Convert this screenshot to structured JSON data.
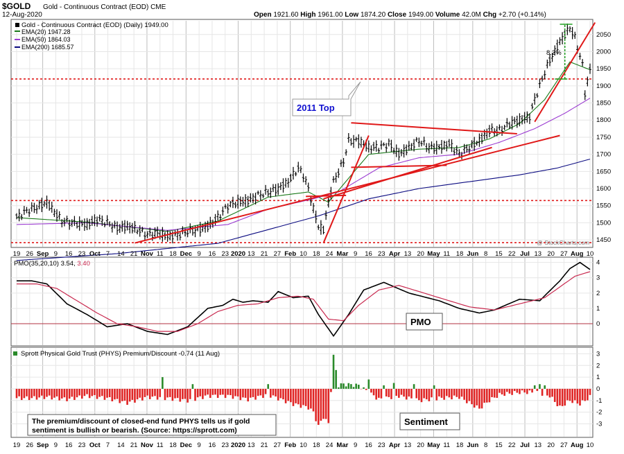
{
  "header": {
    "symbol": "$GOLD",
    "description": "Gold - Continuous Contract (EOD)",
    "exchange": "CME",
    "date": "12-Aug-2020",
    "open_label": "Open",
    "open": "1921.60",
    "high_label": "High",
    "high": "1961.00",
    "low_label": "Low",
    "low": "1874.20",
    "close_label": "Close",
    "close": "1949.00",
    "volume_label": "Volume",
    "volume": "42.0M",
    "chg_label": "Chg",
    "chg": "+2.70 (+0.14%)",
    "watermark": "@ StockCharts.com"
  },
  "colors": {
    "price": "#000000",
    "ema20": "#1a7a1a",
    "ema50": "#9b3bd1",
    "ema200": "#0a0a80",
    "annotation": "#e01818",
    "pmo_signal": "#c8284e",
    "histogram_positive": "#2a8a2a",
    "histogram_negative": "#e02424",
    "label_blue": "#1010d0",
    "measure_green": "#20a020"
  },
  "x_axis": {
    "top_labels": [
      "19",
      "26",
      "Sep",
      "9",
      "16",
      "23",
      "Oct",
      "7",
      "14",
      "21",
      "Nov",
      "11",
      "18",
      "Dec",
      "9",
      "16",
      "23",
      "2020",
      "13",
      "21",
      "27",
      "Feb",
      "10",
      "18",
      "24",
      "Mar",
      "9",
      "16",
      "23",
      "Apr",
      "13",
      "20",
      "May",
      "11",
      "18",
      "Jun",
      "8",
      "15",
      "22",
      "Jul",
      "13",
      "20",
      "27",
      "Aug",
      "10"
    ],
    "bottom_labels": [
      "19",
      "26",
      "Sep",
      "9",
      "16",
      "23",
      "Oct",
      "7",
      "14",
      "21",
      "Nov",
      "11",
      "18",
      "Dec",
      "9",
      "16",
      "23",
      "2020",
      "13",
      "21",
      "27",
      "Feb",
      "10",
      "18",
      "24",
      "Mar",
      "9",
      "16",
      "23",
      "Apr",
      "13",
      "20",
      "May",
      "11",
      "18",
      "Jun",
      "8",
      "15",
      "22",
      "Jul",
      "13",
      "20",
      "27",
      "Aug",
      "10"
    ]
  },
  "chart_data": [
    {
      "type": "line",
      "title": "Gold - Continuous Contract (EOD) (Daily) 1949.00",
      "ylim": [
        1430,
        2090
      ],
      "yticks": [
        1450,
        1500,
        1550,
        1600,
        1650,
        1700,
        1750,
        1800,
        1850,
        1900,
        1950,
        2000,
        2050
      ],
      "series": [
        {
          "name": "Gold - Continuous Contract (EOD) (Daily) 1949.00",
          "style": "ohlc-bars",
          "anchors_day": [
            0,
            4,
            8,
            12,
            18,
            22,
            28,
            32,
            36,
            40,
            44,
            48,
            52,
            56,
            60,
            64,
            68,
            72,
            76,
            80,
            84,
            88,
            92,
            96,
            100,
            104,
            108,
            112,
            114,
            116,
            118,
            120,
            122,
            124,
            126,
            128,
            130,
            132,
            136,
            140,
            144,
            148,
            152,
            156,
            160,
            164,
            168,
            172,
            176,
            180,
            184,
            188,
            192,
            196,
            200,
            204,
            206,
            208,
            210,
            212,
            214,
            216,
            218,
            220,
            222,
            225,
            226,
            228
          ],
          "anchors_price": [
            1515,
            1535,
            1545,
            1560,
            1505,
            1500,
            1495,
            1510,
            1500,
            1485,
            1490,
            1480,
            1465,
            1470,
            1460,
            1465,
            1475,
            1480,
            1490,
            1515,
            1550,
            1560,
            1565,
            1580,
            1590,
            1600,
            1620,
            1660,
            1640,
            1600,
            1540,
            1490,
            1480,
            1560,
            1620,
            1650,
            1680,
            1740,
            1740,
            1720,
            1720,
            1730,
            1700,
            1720,
            1740,
            1720,
            1720,
            1730,
            1700,
            1720,
            1740,
            1770,
            1770,
            1790,
            1800,
            1810,
            1860,
            1900,
            1940,
            1975,
            2000,
            2030,
            2050,
            2070,
            2040,
            1960,
            1880,
            1945
          ]
        },
        {
          "name": "EMA(20) 1947.28",
          "anchors_day": [
            0,
            28,
            60,
            80,
            100,
            116,
            124,
            140,
            160,
            176,
            188,
            200,
            210,
            220,
            228
          ],
          "anchors_price": [
            1515,
            1502,
            1475,
            1505,
            1575,
            1590,
            1560,
            1700,
            1715,
            1720,
            1745,
            1790,
            1860,
            1970,
            1947
          ]
        },
        {
          "name": "EMA(50) 1864.03",
          "anchors_day": [
            0,
            28,
            60,
            84,
            100,
            118,
            128,
            144,
            160,
            176,
            192,
            206,
            218,
            228
          ],
          "anchors_price": [
            1495,
            1500,
            1478,
            1495,
            1540,
            1570,
            1590,
            1660,
            1690,
            1700,
            1735,
            1775,
            1820,
            1864
          ]
        },
        {
          "name": "EMA(200) 1685.57",
          "anchors_day": [
            0,
            40,
            80,
            100,
            120,
            140,
            160,
            180,
            200,
            215,
            228
          ],
          "anchors_price": [
            1390,
            1410,
            1440,
            1480,
            1520,
            1570,
            1600,
            1620,
            1640,
            1660,
            1686
          ]
        }
      ],
      "reference_lines": [
        {
          "y": 1920
        },
        {
          "y": 1565
        },
        {
          "y": 1442
        }
      ],
      "annotations": [
        {
          "text": "2011 Top"
        },
        {
          "text": "8.2%"
        }
      ]
    },
    {
      "type": "line",
      "title": "PMO(35,20,10) 3.54, 3.40",
      "ylim": [
        -1.4,
        4.3
      ],
      "yticks": [
        0,
        1,
        2,
        3,
        4
      ],
      "series": [
        {
          "name": "PMO(35,20,10) 3.54",
          "anchors_day": [
            0,
            6,
            12,
            20,
            28,
            36,
            44,
            52,
            60,
            68,
            76,
            82,
            86,
            90,
            94,
            100,
            104,
            110,
            116,
            120,
            126,
            132,
            138,
            146,
            156,
            168,
            176,
            184,
            190,
            200,
            208,
            216,
            220,
            224,
            228
          ],
          "anchors_value": [
            2.8,
            2.8,
            2.6,
            1.3,
            0.6,
            -0.2,
            0.0,
            -0.5,
            -0.7,
            -0.2,
            1.0,
            1.2,
            1.6,
            1.4,
            1.5,
            1.4,
            2.1,
            1.7,
            1.8,
            0.6,
            -0.8,
            0.6,
            2.2,
            2.7,
            2.0,
            1.5,
            1.0,
            0.7,
            0.9,
            1.6,
            1.5,
            2.8,
            3.6,
            4.0,
            3.54
          ]
        },
        {
          "name": "3.40",
          "anchors_day": [
            0,
            8,
            16,
            24,
            32,
            40,
            48,
            56,
            64,
            72,
            80,
            88,
            96,
            104,
            112,
            118,
            124,
            130,
            136,
            144,
            152,
            160,
            170,
            180,
            190,
            200,
            210,
            216,
            222,
            228
          ],
          "anchors_value": [
            2.6,
            2.6,
            2.3,
            1.5,
            0.7,
            0.0,
            -0.2,
            -0.5,
            -0.5,
            0.0,
            0.8,
            1.2,
            1.3,
            1.7,
            1.8,
            1.6,
            0.3,
            0.2,
            1.2,
            2.2,
            2.5,
            2.1,
            1.6,
            1.1,
            0.9,
            1.3,
            1.7,
            2.4,
            3.1,
            3.4
          ]
        }
      ],
      "annotations": [
        {
          "text": "PMO"
        }
      ]
    },
    {
      "type": "bar",
      "title": "Sprott Physical Gold Trust (PHYS) Premium/Discount -0.74 (11 Aug)",
      "ylim": [
        -4.1,
        3.5
      ],
      "yticks": [
        -3,
        -2,
        -1,
        0,
        1,
        2,
        3
      ],
      "series": [
        {
          "name": "Sprott Physical Gold Trust (PHYS) Premium/Discount -0.74 (11 Aug)",
          "anchors_day": [
            0,
            6,
            12,
            20,
            28,
            36,
            44,
            52,
            60,
            68,
            76,
            84,
            92,
            100,
            110,
            116,
            118,
            120,
            122,
            124,
            126,
            128,
            130,
            136,
            144,
            152,
            160,
            168,
            176,
            184,
            188,
            192,
            200,
            206,
            212,
            216,
            220,
            224,
            228
          ],
          "anchors_value": [
            -0.8,
            -0.8,
            -0.7,
            -0.9,
            -0.6,
            -0.8,
            -1.2,
            -0.7,
            -0.8,
            -1.0,
            -0.6,
            -0.6,
            -0.9,
            -0.5,
            -1.3,
            -1.6,
            -2.0,
            -3.2,
            -2.4,
            -3.0,
            2.8,
            0.3,
            0.4,
            0.3,
            -0.9,
            -0.6,
            -1.0,
            -0.8,
            -0.7,
            -1.7,
            -1.0,
            -0.5,
            -0.3,
            -0.3,
            -0.6,
            -1.6,
            -1.0,
            -1.3,
            -0.7
          ],
          "spikes": [
            {
              "day": 58,
              "value": 1.0
            },
            {
              "day": 70,
              "value": 0.4
            },
            {
              "day": 100,
              "value": 0.4
            },
            {
              "day": 140,
              "value": 0.8
            },
            {
              "day": 146,
              "value": 0.3
            },
            {
              "day": 150,
              "value": 0.5
            },
            {
              "day": 158,
              "value": 0.4
            },
            {
              "day": 166,
              "value": 0.3
            },
            {
              "day": 206,
              "value": 0.3
            },
            {
              "day": 208,
              "value": 0.4
            },
            {
              "day": 210,
              "value": 0.3
            }
          ]
        }
      ],
      "annotations": [
        {
          "text": "Sentiment"
        },
        {
          "text": "The premium/discount of closed-end fund PHYS tells us if gold sentiment is bullish or bearish. (Source: https://sprott.com)"
        }
      ]
    }
  ]
}
